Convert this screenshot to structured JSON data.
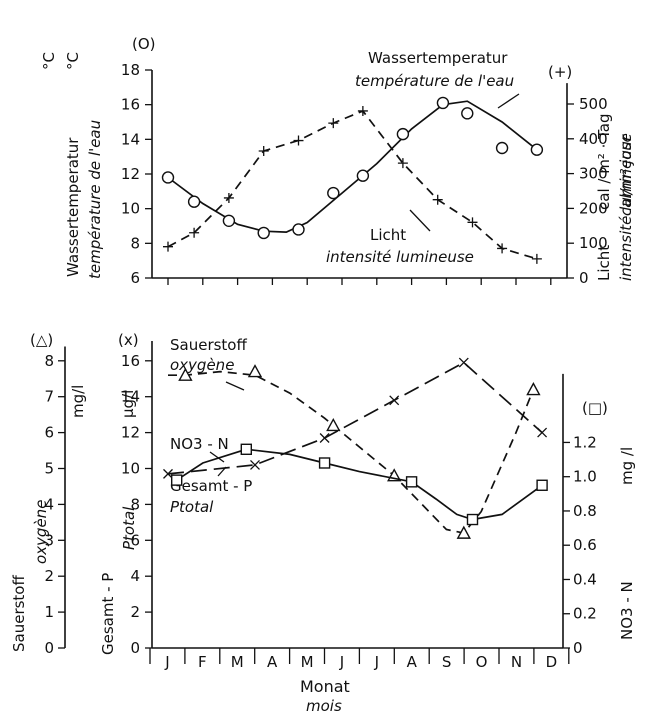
{
  "chart_data": [
    {
      "type": "line",
      "panel": "top",
      "categories": [
        "J",
        "F",
        "M",
        "A",
        "M",
        "J",
        "J",
        "A",
        "S",
        "O",
        "N",
        "D"
      ],
      "left_axis": {
        "marker_label": "(O)",
        "units": [
          "°C",
          "°C"
        ],
        "label": [
          "Wassertemperatur",
          "température de l'eau"
        ],
        "ylim": [
          6,
          18
        ],
        "ticks": [
          "6",
          "8",
          "10",
          "12",
          "14",
          "16",
          "18"
        ]
      },
      "right_axis": {
        "marker_label": "(+)",
        "label": [
          "Licht",
          "intensité lumineuse"
        ],
        "units": [
          "cal / m² · Tag",
          "cal/m²·jour"
        ],
        "ylim": [
          0,
          600
        ],
        "ticks": [
          "0",
          "100",
          "200",
          "300",
          "400",
          "500"
        ]
      },
      "series": [
        {
          "name": "Wassertemperatur",
          "name_fr": "température de l'eau",
          "axis": "left",
          "marker": "circle",
          "style": "solid",
          "points": [
            [
              0.0,
              11.8
            ],
            [
              0.75,
              10.4
            ],
            [
              1.75,
              9.3
            ],
            [
              2.75,
              8.6
            ],
            [
              3.75,
              8.8
            ],
            [
              4.75,
              10.9
            ],
            [
              5.6,
              11.9
            ],
            [
              6.75,
              14.3
            ],
            [
              7.9,
              16.1
            ],
            [
              8.6,
              15.5
            ],
            [
              9.6,
              13.5
            ],
            [
              10.6,
              13.4
            ]
          ],
          "curve": [
            [
              0.0,
              11.8
            ],
            [
              1.0,
              10.3
            ],
            [
              2.0,
              9.1
            ],
            [
              2.75,
              8.7
            ],
            [
              3.4,
              8.65
            ],
            [
              4.0,
              9.2
            ],
            [
              5.0,
              10.9
            ],
            [
              6.0,
              12.6
            ],
            [
              7.0,
              14.6
            ],
            [
              7.9,
              16.0
            ],
            [
              8.6,
              16.2
            ],
            [
              9.6,
              15.0
            ],
            [
              10.6,
              13.4
            ]
          ]
        },
        {
          "name": "Licht",
          "name_fr": "intensité lumineuse",
          "axis": "right",
          "marker": "plus",
          "style": "dashed",
          "points": [
            [
              0.0,
              90
            ],
            [
              0.75,
              130
            ],
            [
              1.75,
              230
            ],
            [
              2.75,
              365
            ],
            [
              3.75,
              395
            ],
            [
              4.75,
              445
            ],
            [
              5.6,
              480
            ],
            [
              6.75,
              330
            ],
            [
              7.75,
              225
            ],
            [
              8.75,
              160
            ],
            [
              9.6,
              85
            ],
            [
              10.6,
              55
            ]
          ]
        }
      ]
    },
    {
      "type": "line",
      "panel": "bottom",
      "categories": [
        "J",
        "F",
        "M",
        "A",
        "M",
        "J",
        "J",
        "A",
        "S",
        "O",
        "N",
        "D"
      ],
      "xlabel": [
        "Monat",
        "mois"
      ],
      "axes": [
        {
          "marker_label": "(△)",
          "units": "mg/l",
          "label": [
            "Sauerstoff",
            "oxygène"
          ],
          "ylim": [
            0,
            8
          ],
          "ticks": [
            "0",
            "1",
            "2",
            "3",
            "4",
            "5",
            "6",
            "7",
            "8"
          ]
        },
        {
          "marker_label": "(x)",
          "units": "µg/l",
          "label": [
            "Gesamt - P",
            "Ptotal"
          ],
          "ylim": [
            0,
            16
          ],
          "ticks": [
            "0",
            "2",
            "4",
            "6",
            "8",
            "10",
            "12",
            "14",
            "16"
          ]
        },
        {
          "marker_label": "(□)",
          "units": "mg /l",
          "label": "NO3 - N",
          "ylim": [
            0,
            1.6
          ],
          "ticks": [
            "0",
            "0.2",
            "0.4",
            "0.6",
            "0.8",
            "1.0",
            "1.2"
          ]
        }
      ],
      "series": [
        {
          "name": "Sauerstoff",
          "name_fr": "oxygène",
          "axis": "mg/l",
          "marker": "triangle",
          "style": "dashed",
          "points": [
            [
              0.5,
              7.6
            ],
            [
              2.5,
              7.7
            ],
            [
              4.75,
              6.2
            ],
            [
              6.5,
              4.8
            ],
            [
              8.5,
              3.2
            ],
            [
              10.5,
              7.2
            ]
          ],
          "curve": [
            [
              0.0,
              7.6
            ],
            [
              0.5,
              7.6
            ],
            [
              1.5,
              7.7
            ],
            [
              2.5,
              7.6
            ],
            [
              3.5,
              7.1
            ],
            [
              4.5,
              6.4
            ],
            [
              5.5,
              5.6
            ],
            [
              6.5,
              4.8
            ],
            [
              7.5,
              3.8
            ],
            [
              8.0,
              3.3
            ],
            [
              8.5,
              3.2
            ],
            [
              9.0,
              3.8
            ],
            [
              10.0,
              6.0
            ],
            [
              10.5,
              7.2
            ]
          ]
        },
        {
          "name": "Gesamt - P",
          "name_fr": "Ptotal",
          "axis": "µg/l",
          "marker": "cross",
          "style": "long-dashed",
          "points": [
            [
              0.0,
              9.7
            ],
            [
              2.5,
              10.2
            ],
            [
              4.5,
              11.7
            ],
            [
              6.5,
              13.8
            ],
            [
              8.5,
              15.9
            ],
            [
              10.75,
              12.0
            ]
          ]
        },
        {
          "name": "NO3-N",
          "axis": "mg /l",
          "marker": "square",
          "style": "solid",
          "points": [
            [
              0.25,
              0.98
            ],
            [
              2.25,
              1.16
            ],
            [
              4.5,
              1.08
            ],
            [
              7.0,
              0.97
            ],
            [
              8.75,
              0.75
            ],
            [
              10.75,
              0.95
            ]
          ],
          "curve": [
            [
              0.25,
              0.98
            ],
            [
              1.0,
              1.08
            ],
            [
              2.25,
              1.16
            ],
            [
              3.5,
              1.13
            ],
            [
              4.5,
              1.08
            ],
            [
              5.5,
              1.03
            ],
            [
              7.0,
              0.97
            ],
            [
              7.7,
              0.87
            ],
            [
              8.3,
              0.78
            ],
            [
              8.75,
              0.75
            ],
            [
              9.6,
              0.78
            ],
            [
              10.75,
              0.95
            ]
          ]
        }
      ],
      "annotations": {
        "oxygen": [
          "Sauerstoff",
          "oxygène"
        ],
        "nitrate": "NO3 - N",
        "phosphorus": [
          "Gesamt - P",
          "Ptotal"
        ]
      }
    }
  ]
}
